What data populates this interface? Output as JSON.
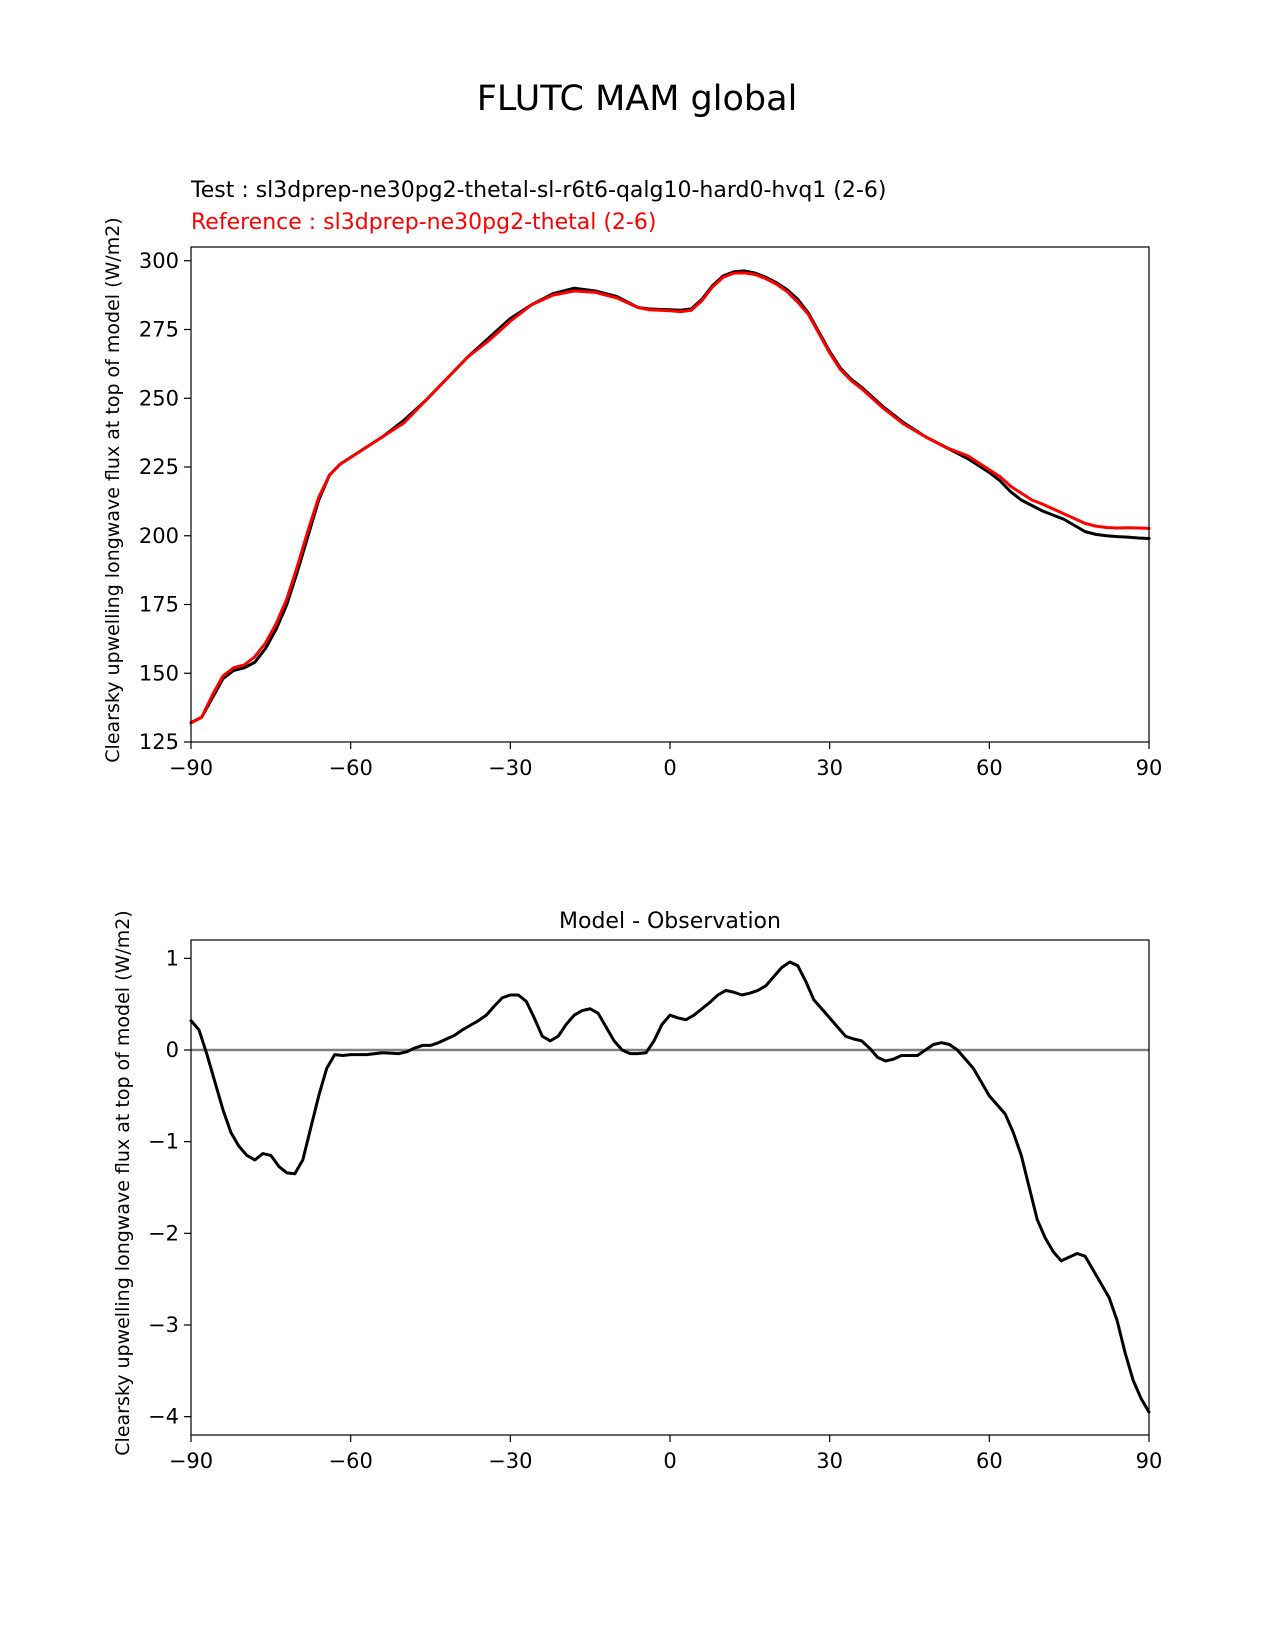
{
  "title": "FLUTC MAM global",
  "chart_data": [
    {
      "type": "line",
      "title_lines": [
        {
          "text": "Test : sl3dprep-ne30pg2-thetal-sl-r6t6-qalg10-hard0-hvq1 (2-6)",
          "color": "#000000"
        },
        {
          "text": "Reference : sl3dprep-ne30pg2-thetal (2-6)",
          "color": "#ff0000"
        }
      ],
      "xlabel": "",
      "ylabel": "Clearsky upwelling longwave flux at top of model (W/m2)",
      "xlim": [
        -90,
        90
      ],
      "ylim": [
        125,
        305
      ],
      "xticks": [
        -90,
        -60,
        -30,
        0,
        30,
        60,
        90
      ],
      "xtick_labels": [
        "−90",
        "−60",
        "−30",
        "0",
        "30",
        "60",
        "90"
      ],
      "yticks": [
        125,
        150,
        175,
        200,
        225,
        250,
        275,
        300
      ],
      "ytick_labels": [
        "125",
        "150",
        "175",
        "200",
        "225",
        "250",
        "275",
        "300"
      ],
      "series": [
        {
          "color": "#000000",
          "x": [
            -90,
            -88,
            -86,
            -84,
            -82,
            -80,
            -78,
            -76,
            -74,
            -72,
            -70,
            -68,
            -66,
            -64,
            -62,
            -58,
            -54,
            -50,
            -46,
            -42,
            -38,
            -34,
            -30,
            -26,
            -22,
            -18,
            -14,
            -10,
            -6,
            -4,
            -2,
            0,
            2,
            4,
            6,
            8,
            10,
            12,
            14,
            16,
            18,
            20,
            22,
            24,
            26,
            28,
            30,
            32,
            34,
            36,
            40,
            44,
            48,
            52,
            56,
            60,
            62,
            64,
            66,
            68,
            70,
            74,
            78,
            80,
            82,
            84,
            86,
            88,
            90
          ],
          "y": [
            132,
            134,
            141,
            148,
            151,
            152,
            154,
            159,
            166,
            175,
            187,
            200,
            213,
            222,
            226,
            231,
            236,
            242,
            249,
            257,
            265,
            272,
            279,
            284,
            288,
            290,
            289,
            287,
            283,
            282.5,
            282.3,
            282.2,
            282,
            282.5,
            286,
            291,
            294.5,
            296,
            296.3,
            295.5,
            294,
            292,
            289.5,
            286,
            281,
            274,
            267,
            261,
            257,
            254,
            247,
            241,
            236,
            232,
            228,
            223,
            220,
            216,
            213,
            211,
            209,
            206,
            201.5,
            200.5,
            200,
            199.7,
            199.5,
            199.2,
            199
          ],
          "stroke_width": 3
        },
        {
          "color": "#ff0000",
          "x": [
            -90,
            -88,
            -86,
            -84,
            -82,
            -80,
            -78,
            -76,
            -74,
            -72,
            -70,
            -68,
            -66,
            -64,
            -62,
            -58,
            -54,
            -50,
            -46,
            -42,
            -38,
            -34,
            -30,
            -26,
            -22,
            -18,
            -14,
            -10,
            -6,
            -4,
            -2,
            0,
            2,
            4,
            6,
            8,
            10,
            12,
            14,
            16,
            18,
            20,
            22,
            24,
            26,
            28,
            30,
            32,
            34,
            36,
            40,
            44,
            48,
            52,
            56,
            60,
            62,
            64,
            66,
            68,
            70,
            74,
            78,
            80,
            82,
            84,
            86,
            88,
            90
          ],
          "y": [
            132,
            134,
            142,
            149,
            152,
            153,
            156,
            161,
            168,
            177,
            189,
            202,
            214,
            222,
            226,
            231,
            236,
            241,
            249,
            257,
            265,
            271,
            278,
            284,
            287.5,
            289,
            288.5,
            286.5,
            283,
            282.2,
            282,
            281.8,
            281.5,
            282,
            285.5,
            290.5,
            294,
            295.5,
            295.6,
            295,
            293.5,
            291.5,
            288.8,
            285,
            280.5,
            273.5,
            266.5,
            260.5,
            256.5,
            253.5,
            246.5,
            240.5,
            236,
            232,
            229,
            224,
            221.5,
            218,
            215.5,
            213,
            211.5,
            208,
            204.5,
            203.5,
            203,
            202.8,
            202.9,
            202.8,
            202.7
          ],
          "stroke_width": 3
        }
      ]
    },
    {
      "type": "line",
      "title": "Model - Observation",
      "xlabel": "",
      "ylabel": "Clearsky upwelling longwave flux at top of model (W/m2)",
      "xlim": [
        -90,
        90
      ],
      "ylim": [
        -4.2,
        1.2
      ],
      "xticks": [
        -90,
        -60,
        -30,
        0,
        30,
        60,
        90
      ],
      "xtick_labels": [
        "−90",
        "−60",
        "−30",
        "0",
        "30",
        "60",
        "90"
      ],
      "yticks": [
        1,
        0,
        -1,
        -2,
        -3,
        -4
      ],
      "ytick_labels": [
        "1",
        "0",
        "−1",
        "−2",
        "−3",
        "−4"
      ],
      "zero_line": {
        "y": 0,
        "color": "#808080"
      },
      "series": [
        {
          "color": "#000000",
          "x": [
            -90,
            -88.5,
            -87,
            -85.5,
            -84,
            -82.5,
            -81,
            -79.5,
            -78,
            -76.5,
            -75,
            -73.5,
            -72,
            -70.5,
            -69,
            -67.5,
            -66,
            -64.5,
            -63,
            -61.5,
            -60,
            -57,
            -54,
            -51,
            -49.5,
            -48,
            -46.5,
            -45,
            -43.5,
            -42,
            -40.5,
            -39,
            -37.5,
            -36,
            -34.5,
            -33,
            -31.5,
            -30,
            -28.5,
            -27,
            -25.5,
            -24,
            -22.5,
            -21,
            -19.5,
            -18,
            -16.5,
            -15,
            -13.5,
            -12,
            -10.5,
            -9,
            -7.5,
            -6,
            -4.5,
            -3,
            -1.5,
            0,
            1.5,
            3,
            4.5,
            6,
            7.5,
            9,
            10.5,
            12,
            13.5,
            15,
            16.5,
            18,
            19.5,
            21,
            22.5,
            24,
            25.5,
            27,
            28.5,
            30,
            31.5,
            33,
            34.5,
            36,
            37.5,
            39,
            40.5,
            42,
            43.5,
            45,
            46.5,
            48,
            49.5,
            51,
            52.5,
            54,
            55.5,
            57,
            58.5,
            60,
            61.5,
            63,
            64.5,
            66,
            67.5,
            69,
            70.5,
            72,
            73.5,
            75,
            76.5,
            78,
            79.5,
            81,
            82.5,
            84,
            85.5,
            87,
            88.5,
            90
          ],
          "y": [
            0.32,
            0.22,
            -0.05,
            -0.35,
            -0.65,
            -0.9,
            -1.05,
            -1.15,
            -1.2,
            -1.13,
            -1.15,
            -1.27,
            -1.34,
            -1.35,
            -1.2,
            -0.85,
            -0.5,
            -0.2,
            -0.05,
            -0.06,
            -0.05,
            -0.05,
            -0.03,
            -0.04,
            -0.02,
            0.02,
            0.05,
            0.05,
            0.08,
            0.12,
            0.16,
            0.22,
            0.27,
            0.32,
            0.38,
            0.48,
            0.57,
            0.6,
            0.6,
            0.53,
            0.35,
            0.15,
            0.1,
            0.15,
            0.28,
            0.38,
            0.43,
            0.45,
            0.4,
            0.25,
            0.1,
            0.0,
            -0.04,
            -0.04,
            -0.03,
            0.1,
            0.28,
            0.38,
            0.35,
            0.33,
            0.38,
            0.45,
            0.52,
            0.6,
            0.65,
            0.63,
            0.6,
            0.62,
            0.65,
            0.7,
            0.8,
            0.9,
            0.96,
            0.92,
            0.75,
            0.55,
            0.45,
            0.35,
            0.25,
            0.15,
            0.12,
            0.1,
            0.02,
            -0.08,
            -0.12,
            -0.1,
            -0.06,
            -0.06,
            -0.06,
            0.0,
            0.06,
            0.08,
            0.06,
            0.0,
            -0.1,
            -0.2,
            -0.35,
            -0.5,
            -0.6,
            -0.7,
            -0.9,
            -1.15,
            -1.5,
            -1.85,
            -2.05,
            -2.2,
            -2.3,
            -2.26,
            -2.22,
            -2.25,
            -2.4,
            -2.55,
            -2.7,
            -2.95,
            -3.3,
            -3.6,
            -3.8,
            -3.95
          ],
          "stroke_width": 3
        }
      ]
    }
  ]
}
